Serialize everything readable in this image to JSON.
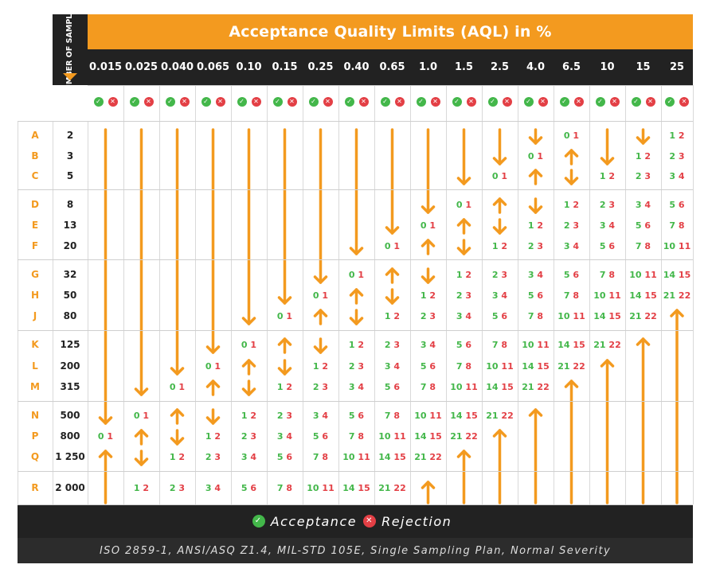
{
  "title": "Acceptance Quality Limits (AQL) in %",
  "samples_header": "NUMBER OF SAMPLES",
  "aql_columns": [
    "0.015",
    "0.025",
    "0.040",
    "0.065",
    "0.10",
    "0.15",
    "0.25",
    "0.40",
    "0.65",
    "1.0",
    "1.5",
    "2.5",
    "4.0",
    "6.5",
    "10",
    "15",
    "25"
  ],
  "code_letters": [
    "A",
    "B",
    "C",
    "D",
    "E",
    "F",
    "G",
    "H",
    "J",
    "K",
    "L",
    "M",
    "N",
    "P",
    "Q",
    "R"
  ],
  "sample_sizes": [
    "2",
    "3",
    "5",
    "8",
    "13",
    "20",
    "32",
    "50",
    "80",
    "125",
    "200",
    "315",
    "500",
    "800",
    "1 250",
    "2 000"
  ],
  "legend": {
    "acceptance_label": "Acceptance",
    "rejection_label": "Rejection"
  },
  "footer_note": "ISO 2859-1, ANSI/ASQ Z1.4, MIL-STD 105E, Single Sampling Plan, Normal Severity",
  "colors": {
    "accent": "#f39a1f",
    "dark": "#222222",
    "accept": "#43b74a",
    "reject": "#e33f45"
  },
  "icons": {
    "accept": "check-circle-icon",
    "reject": "x-circle-icon",
    "arrow_down": "arrow-down-icon",
    "arrow_up": "arrow-up-icon"
  },
  "pairs": [
    {
      "row": "A",
      "col": "6.5",
      "ac": "0",
      "re": "1"
    },
    {
      "row": "A",
      "col": "25",
      "ac": "1",
      "re": "2"
    },
    {
      "row": "B",
      "col": "4.0",
      "ac": "0",
      "re": "1"
    },
    {
      "row": "B",
      "col": "15",
      "ac": "1",
      "re": "2"
    },
    {
      "row": "B",
      "col": "25",
      "ac": "2",
      "re": "3"
    },
    {
      "row": "C",
      "col": "2.5",
      "ac": "0",
      "re": "1"
    },
    {
      "row": "C",
      "col": "10",
      "ac": "1",
      "re": "2"
    },
    {
      "row": "C",
      "col": "15",
      "ac": "2",
      "re": "3"
    },
    {
      "row": "C",
      "col": "25",
      "ac": "3",
      "re": "4"
    },
    {
      "row": "D",
      "col": "1.5",
      "ac": "0",
      "re": "1"
    },
    {
      "row": "D",
      "col": "6.5",
      "ac": "1",
      "re": "2"
    },
    {
      "row": "D",
      "col": "10",
      "ac": "2",
      "re": "3"
    },
    {
      "row": "D",
      "col": "15",
      "ac": "3",
      "re": "4"
    },
    {
      "row": "D",
      "col": "25",
      "ac": "5",
      "re": "6"
    },
    {
      "row": "E",
      "col": "1.0",
      "ac": "0",
      "re": "1"
    },
    {
      "row": "E",
      "col": "4.0",
      "ac": "1",
      "re": "2"
    },
    {
      "row": "E",
      "col": "6.5",
      "ac": "2",
      "re": "3"
    },
    {
      "row": "E",
      "col": "10",
      "ac": "3",
      "re": "4"
    },
    {
      "row": "E",
      "col": "15",
      "ac": "5",
      "re": "6"
    },
    {
      "row": "E",
      "col": "25",
      "ac": "7",
      "re": "8"
    },
    {
      "row": "F",
      "col": "0.65",
      "ac": "0",
      "re": "1"
    },
    {
      "row": "F",
      "col": "2.5",
      "ac": "1",
      "re": "2"
    },
    {
      "row": "F",
      "col": "4.0",
      "ac": "2",
      "re": "3"
    },
    {
      "row": "F",
      "col": "6.5",
      "ac": "3",
      "re": "4"
    },
    {
      "row": "F",
      "col": "10",
      "ac": "5",
      "re": "6"
    },
    {
      "row": "F",
      "col": "15",
      "ac": "7",
      "re": "8"
    },
    {
      "row": "F",
      "col": "25",
      "ac": "10",
      "re": "11"
    },
    {
      "row": "G",
      "col": "0.40",
      "ac": "0",
      "re": "1"
    },
    {
      "row": "G",
      "col": "1.5",
      "ac": "1",
      "re": "2"
    },
    {
      "row": "G",
      "col": "2.5",
      "ac": "2",
      "re": "3"
    },
    {
      "row": "G",
      "col": "4.0",
      "ac": "3",
      "re": "4"
    },
    {
      "row": "G",
      "col": "6.5",
      "ac": "5",
      "re": "6"
    },
    {
      "row": "G",
      "col": "10",
      "ac": "7",
      "re": "8"
    },
    {
      "row": "G",
      "col": "15",
      "ac": "10",
      "re": "11"
    },
    {
      "row": "G",
      "col": "25",
      "ac": "14",
      "re": "15"
    },
    {
      "row": "H",
      "col": "0.25",
      "ac": "0",
      "re": "1"
    },
    {
      "row": "H",
      "col": "1.0",
      "ac": "1",
      "re": "2"
    },
    {
      "row": "H",
      "col": "1.5",
      "ac": "2",
      "re": "3"
    },
    {
      "row": "H",
      "col": "2.5",
      "ac": "3",
      "re": "4"
    },
    {
      "row": "H",
      "col": "4.0",
      "ac": "5",
      "re": "6"
    },
    {
      "row": "H",
      "col": "6.5",
      "ac": "7",
      "re": "8"
    },
    {
      "row": "H",
      "col": "10",
      "ac": "10",
      "re": "11"
    },
    {
      "row": "H",
      "col": "15",
      "ac": "14",
      "re": "15"
    },
    {
      "row": "H",
      "col": "25",
      "ac": "21",
      "re": "22"
    },
    {
      "row": "J",
      "col": "0.15",
      "ac": "0",
      "re": "1"
    },
    {
      "row": "J",
      "col": "0.65",
      "ac": "1",
      "re": "2"
    },
    {
      "row": "J",
      "col": "1.0",
      "ac": "2",
      "re": "3"
    },
    {
      "row": "J",
      "col": "1.5",
      "ac": "3",
      "re": "4"
    },
    {
      "row": "J",
      "col": "2.5",
      "ac": "5",
      "re": "6"
    },
    {
      "row": "J",
      "col": "4.0",
      "ac": "7",
      "re": "8"
    },
    {
      "row": "J",
      "col": "6.5",
      "ac": "10",
      "re": "11"
    },
    {
      "row": "J",
      "col": "10",
      "ac": "14",
      "re": "15"
    },
    {
      "row": "J",
      "col": "15",
      "ac": "21",
      "re": "22"
    },
    {
      "row": "K",
      "col": "0.10",
      "ac": "0",
      "re": "1"
    },
    {
      "row": "K",
      "col": "0.40",
      "ac": "1",
      "re": "2"
    },
    {
      "row": "K",
      "col": "0.65",
      "ac": "2",
      "re": "3"
    },
    {
      "row": "K",
      "col": "1.0",
      "ac": "3",
      "re": "4"
    },
    {
      "row": "K",
      "col": "1.5",
      "ac": "5",
      "re": "6"
    },
    {
      "row": "K",
      "col": "2.5",
      "ac": "7",
      "re": "8"
    },
    {
      "row": "K",
      "col": "4.0",
      "ac": "10",
      "re": "11"
    },
    {
      "row": "K",
      "col": "6.5",
      "ac": "14",
      "re": "15"
    },
    {
      "row": "K",
      "col": "10",
      "ac": "21",
      "re": "22"
    },
    {
      "row": "L",
      "col": "0.065",
      "ac": "0",
      "re": "1"
    },
    {
      "row": "L",
      "col": "0.25",
      "ac": "1",
      "re": "2"
    },
    {
      "row": "L",
      "col": "0.40",
      "ac": "2",
      "re": "3"
    },
    {
      "row": "L",
      "col": "0.65",
      "ac": "3",
      "re": "4"
    },
    {
      "row": "L",
      "col": "1.0",
      "ac": "5",
      "re": "6"
    },
    {
      "row": "L",
      "col": "1.5",
      "ac": "7",
      "re": "8"
    },
    {
      "row": "L",
      "col": "2.5",
      "ac": "10",
      "re": "11"
    },
    {
      "row": "L",
      "col": "4.0",
      "ac": "14",
      "re": "15"
    },
    {
      "row": "L",
      "col": "6.5",
      "ac": "21",
      "re": "22"
    },
    {
      "row": "M",
      "col": "0.040",
      "ac": "0",
      "re": "1"
    },
    {
      "row": "M",
      "col": "0.15",
      "ac": "1",
      "re": "2"
    },
    {
      "row": "M",
      "col": "0.25",
      "ac": "2",
      "re": "3"
    },
    {
      "row": "M",
      "col": "0.40",
      "ac": "3",
      "re": "4"
    },
    {
      "row": "M",
      "col": "0.65",
      "ac": "5",
      "re": "6"
    },
    {
      "row": "M",
      "col": "1.0",
      "ac": "7",
      "re": "8"
    },
    {
      "row": "M",
      "col": "1.5",
      "ac": "10",
      "re": "11"
    },
    {
      "row": "M",
      "col": "2.5",
      "ac": "14",
      "re": "15"
    },
    {
      "row": "M",
      "col": "4.0",
      "ac": "21",
      "re": "22"
    },
    {
      "row": "N",
      "col": "0.025",
      "ac": "0",
      "re": "1"
    },
    {
      "row": "N",
      "col": "0.10",
      "ac": "1",
      "re": "2"
    },
    {
      "row": "N",
      "col": "0.15",
      "ac": "2",
      "re": "3"
    },
    {
      "row": "N",
      "col": "0.25",
      "ac": "3",
      "re": "4"
    },
    {
      "row": "N",
      "col": "0.40",
      "ac": "5",
      "re": "6"
    },
    {
      "row": "N",
      "col": "0.65",
      "ac": "7",
      "re": "8"
    },
    {
      "row": "N",
      "col": "1.0",
      "ac": "10",
      "re": "11"
    },
    {
      "row": "N",
      "col": "1.5",
      "ac": "14",
      "re": "15"
    },
    {
      "row": "N",
      "col": "2.5",
      "ac": "21",
      "re": "22"
    },
    {
      "row": "P",
      "col": "0.015",
      "ac": "0",
      "re": "1"
    },
    {
      "row": "P",
      "col": "0.065",
      "ac": "1",
      "re": "2"
    },
    {
      "row": "P",
      "col": "0.10",
      "ac": "2",
      "re": "3"
    },
    {
      "row": "P",
      "col": "0.15",
      "ac": "3",
      "re": "4"
    },
    {
      "row": "P",
      "col": "0.25",
      "ac": "5",
      "re": "6"
    },
    {
      "row": "P",
      "col": "0.40",
      "ac": "7",
      "re": "8"
    },
    {
      "row": "P",
      "col": "0.65",
      "ac": "10",
      "re": "11"
    },
    {
      "row": "P",
      "col": "1.0",
      "ac": "14",
      "re": "15"
    },
    {
      "row": "P",
      "col": "1.5",
      "ac": "21",
      "re": "22"
    },
    {
      "row": "Q",
      "col": "0.040",
      "ac": "1",
      "re": "2"
    },
    {
      "row": "Q",
      "col": "0.065",
      "ac": "2",
      "re": "3"
    },
    {
      "row": "Q",
      "col": "0.10",
      "ac": "3",
      "re": "4"
    },
    {
      "row": "Q",
      "col": "0.15",
      "ac": "5",
      "re": "6"
    },
    {
      "row": "Q",
      "col": "0.25",
      "ac": "7",
      "re": "8"
    },
    {
      "row": "Q",
      "col": "0.40",
      "ac": "10",
      "re": "11"
    },
    {
      "row": "Q",
      "col": "0.65",
      "ac": "14",
      "re": "15"
    },
    {
      "row": "Q",
      "col": "1.0",
      "ac": "21",
      "re": "22"
    },
    {
      "row": "R",
      "col": "0.025",
      "ac": "1",
      "re": "2"
    },
    {
      "row": "R",
      "col": "0.040",
      "ac": "2",
      "re": "3"
    },
    {
      "row": "R",
      "col": "0.065",
      "ac": "3",
      "re": "4"
    },
    {
      "row": "R",
      "col": "0.10",
      "ac": "5",
      "re": "6"
    },
    {
      "row": "R",
      "col": "0.15",
      "ac": "7",
      "re": "8"
    },
    {
      "row": "R",
      "col": "0.25",
      "ac": "10",
      "re": "11"
    },
    {
      "row": "R",
      "col": "0.40",
      "ac": "14",
      "re": "15"
    },
    {
      "row": "R",
      "col": "0.65",
      "ac": "21",
      "re": "22"
    }
  ],
  "arrows": [
    {
      "col": "0.015",
      "dir": "down",
      "from": "A",
      "to": "N"
    },
    {
      "col": "0.015",
      "dir": "up",
      "from": "Q",
      "to": "R"
    },
    {
      "col": "0.025",
      "dir": "down",
      "from": "A",
      "to": "M"
    },
    {
      "col": "0.025",
      "dir": "up",
      "from": "P",
      "to": "P"
    },
    {
      "col": "0.025",
      "dir": "down",
      "from": "Q",
      "to": "Q"
    },
    {
      "col": "0.040",
      "dir": "down",
      "from": "A",
      "to": "L"
    },
    {
      "col": "0.040",
      "dir": "up",
      "from": "N",
      "to": "N"
    },
    {
      "col": "0.040",
      "dir": "down",
      "from": "P",
      "to": "P"
    },
    {
      "col": "0.065",
      "dir": "down",
      "from": "A",
      "to": "K"
    },
    {
      "col": "0.065",
      "dir": "up",
      "from": "M",
      "to": "M"
    },
    {
      "col": "0.065",
      "dir": "down",
      "from": "N",
      "to": "N"
    },
    {
      "col": "0.10",
      "dir": "down",
      "from": "A",
      "to": "J"
    },
    {
      "col": "0.10",
      "dir": "up",
      "from": "L",
      "to": "L"
    },
    {
      "col": "0.10",
      "dir": "down",
      "from": "M",
      "to": "M"
    },
    {
      "col": "0.15",
      "dir": "down",
      "from": "A",
      "to": "H"
    },
    {
      "col": "0.15",
      "dir": "up",
      "from": "K",
      "to": "K"
    },
    {
      "col": "0.15",
      "dir": "down",
      "from": "L",
      "to": "L"
    },
    {
      "col": "0.25",
      "dir": "down",
      "from": "A",
      "to": "G"
    },
    {
      "col": "0.25",
      "dir": "up",
      "from": "J",
      "to": "J"
    },
    {
      "col": "0.25",
      "dir": "down",
      "from": "K",
      "to": "K"
    },
    {
      "col": "0.40",
      "dir": "down",
      "from": "A",
      "to": "F"
    },
    {
      "col": "0.40",
      "dir": "up",
      "from": "H",
      "to": "H"
    },
    {
      "col": "0.40",
      "dir": "down",
      "from": "J",
      "to": "J"
    },
    {
      "col": "0.65",
      "dir": "down",
      "from": "A",
      "to": "E"
    },
    {
      "col": "0.65",
      "dir": "up",
      "from": "G",
      "to": "G"
    },
    {
      "col": "0.65",
      "dir": "down",
      "from": "H",
      "to": "H"
    },
    {
      "col": "1.0",
      "dir": "down",
      "from": "A",
      "to": "D"
    },
    {
      "col": "1.0",
      "dir": "up",
      "from": "F",
      "to": "F"
    },
    {
      "col": "1.0",
      "dir": "down",
      "from": "G",
      "to": "G"
    },
    {
      "col": "1.0",
      "dir": "up",
      "from": "R",
      "to": "R"
    },
    {
      "col": "1.5",
      "dir": "down",
      "from": "A",
      "to": "C"
    },
    {
      "col": "1.5",
      "dir": "up",
      "from": "E",
      "to": "E"
    },
    {
      "col": "1.5",
      "dir": "down",
      "from": "F",
      "to": "F"
    },
    {
      "col": "1.5",
      "dir": "up",
      "from": "Q",
      "to": "R"
    },
    {
      "col": "2.5",
      "dir": "down",
      "from": "A",
      "to": "B"
    },
    {
      "col": "2.5",
      "dir": "up",
      "from": "D",
      "to": "D"
    },
    {
      "col": "2.5",
      "dir": "down",
      "from": "E",
      "to": "E"
    },
    {
      "col": "2.5",
      "dir": "up",
      "from": "P",
      "to": "R"
    },
    {
      "col": "4.0",
      "dir": "down",
      "from": "A",
      "to": "A"
    },
    {
      "col": "4.0",
      "dir": "up",
      "from": "C",
      "to": "C"
    },
    {
      "col": "4.0",
      "dir": "down",
      "from": "D",
      "to": "D"
    },
    {
      "col": "4.0",
      "dir": "up",
      "from": "N",
      "to": "R"
    },
    {
      "col": "6.5",
      "dir": "up",
      "from": "B",
      "to": "B"
    },
    {
      "col": "6.5",
      "dir": "down",
      "from": "C",
      "to": "C"
    },
    {
      "col": "6.5",
      "dir": "up",
      "from": "M",
      "to": "R"
    },
    {
      "col": "10",
      "dir": "down",
      "from": "A",
      "to": "B"
    },
    {
      "col": "10",
      "dir": "up",
      "from": "L",
      "to": "R"
    },
    {
      "col": "15",
      "dir": "down",
      "from": "A",
      "to": "A"
    },
    {
      "col": "15",
      "dir": "up",
      "from": "K",
      "to": "R"
    },
    {
      "col": "25",
      "dir": "up",
      "from": "J",
      "to": "R"
    }
  ]
}
